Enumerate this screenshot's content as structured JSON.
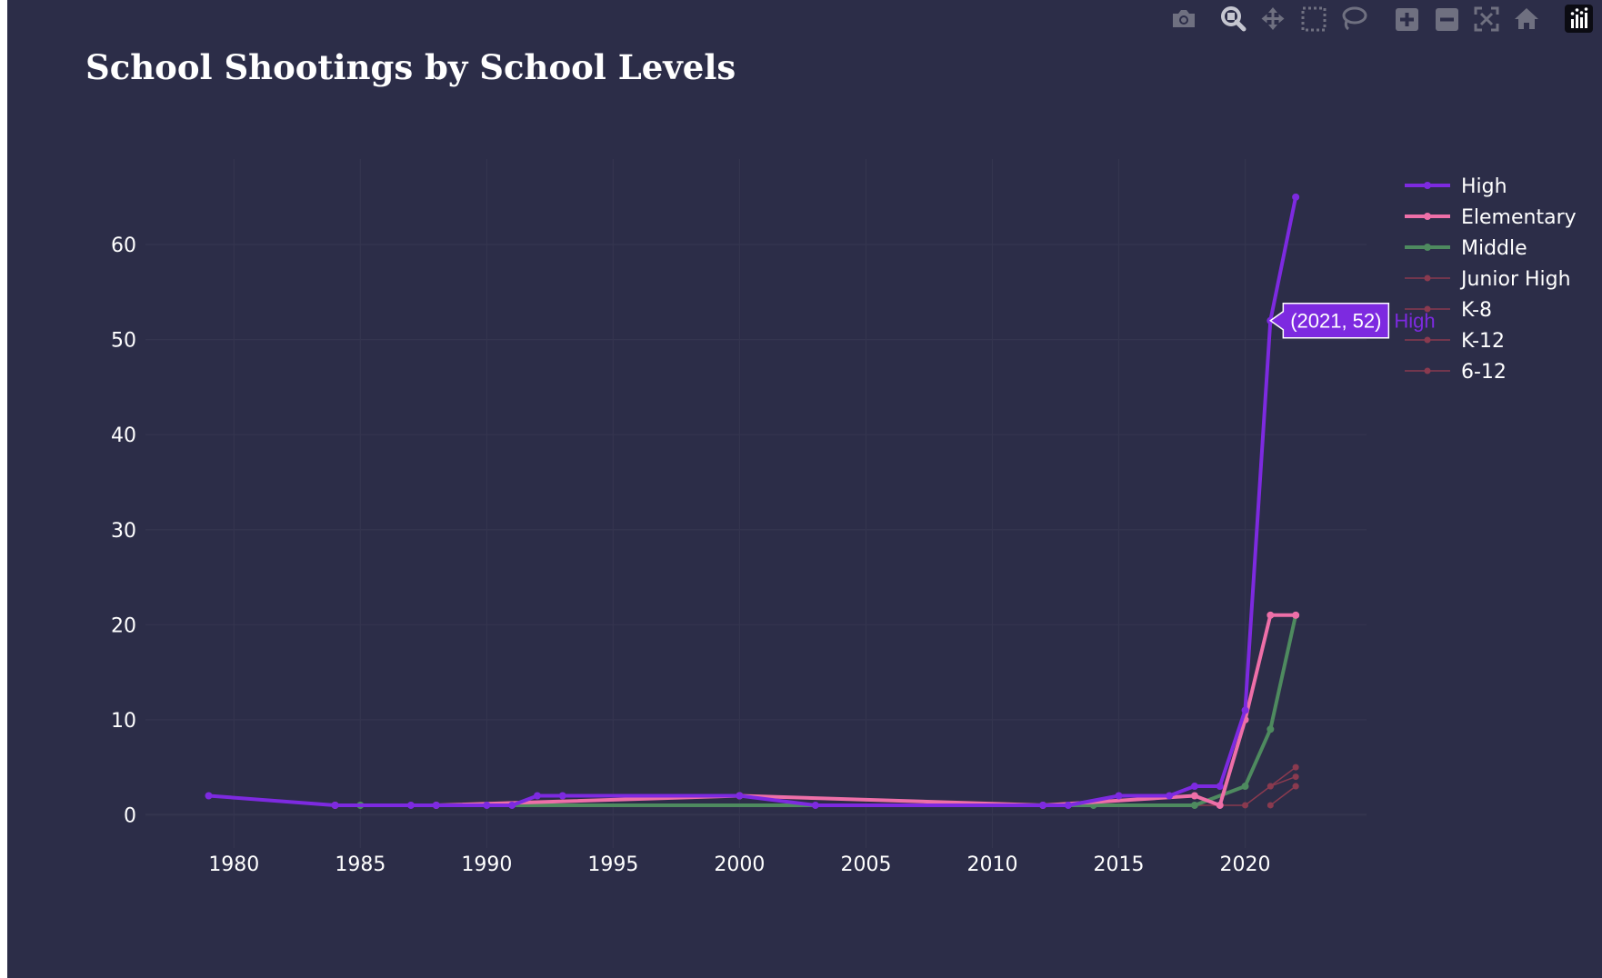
{
  "modebar": {
    "buttons": [
      {
        "name": "download-plot-button",
        "icon": "camera-icon"
      },
      {
        "name": "zoom-button",
        "icon": "zoom-magnifier-icon"
      },
      {
        "name": "pan-button",
        "icon": "pan-arrows-icon"
      },
      {
        "name": "box-select-button",
        "icon": "box-select-icon"
      },
      {
        "name": "lasso-select-button",
        "icon": "lasso-icon"
      },
      {
        "name": "zoom-in-button",
        "icon": "plus-square-icon"
      },
      {
        "name": "zoom-out-button",
        "icon": "minus-square-icon"
      },
      {
        "name": "autoscale-button",
        "icon": "autoscale-icon"
      },
      {
        "name": "reset-axes-button",
        "icon": "home-icon"
      },
      {
        "name": "plotly-logo-button",
        "icon": "plotly-logo-icon"
      }
    ]
  },
  "colors": {
    "background": "#2c2d48",
    "grid": "#34354f",
    "text": "#ffffff",
    "toolbar_icon": "#6f7080",
    "zoom_active": "#b8b9c4"
  },
  "chart_data": {
    "type": "line",
    "title": "School Shootings by School Levels",
    "xlabel": "",
    "ylabel": "",
    "xlim": [
      1976.5,
      2024.8
    ],
    "ylim": [
      -3.5,
      69
    ],
    "x_ticks": [
      1980,
      1985,
      1990,
      1995,
      2000,
      2005,
      2010,
      2015,
      2020
    ],
    "y_ticks": [
      0,
      10,
      20,
      30,
      40,
      50,
      60
    ],
    "grid": true,
    "legend_position": "top-right",
    "series": [
      {
        "name": "High",
        "color": "#7d2ae0",
        "width": 4,
        "marker": 6,
        "points": [
          [
            1979,
            2
          ],
          [
            1984,
            1
          ],
          [
            1987,
            1
          ],
          [
            1988,
            1
          ],
          [
            1990,
            1
          ],
          [
            1991,
            1
          ],
          [
            1992,
            2
          ],
          [
            1993,
            2
          ],
          [
            2000,
            2
          ],
          [
            2003,
            1
          ],
          [
            2012,
            1
          ],
          [
            2013,
            1
          ],
          [
            2015,
            2
          ],
          [
            2017,
            2
          ],
          [
            2018,
            3
          ],
          [
            2019,
            3
          ],
          [
            2020,
            11
          ],
          [
            2021,
            52
          ],
          [
            2022,
            65
          ]
        ]
      },
      {
        "name": "Elementary",
        "color": "#ee6fa8",
        "width": 4,
        "marker": 6,
        "points": [
          [
            1984,
            1
          ],
          [
            1988,
            1
          ],
          [
            2000,
            2
          ],
          [
            2012,
            1
          ],
          [
            2018,
            2
          ],
          [
            2019,
            1
          ],
          [
            2020,
            10
          ],
          [
            2021,
            21
          ],
          [
            2022,
            21
          ]
        ]
      },
      {
        "name": "Middle",
        "color": "#4e8a5f",
        "width": 4,
        "marker": 6,
        "points": [
          [
            1985,
            1
          ],
          [
            2014,
            1
          ],
          [
            2018,
            1
          ],
          [
            2020,
            3
          ],
          [
            2021,
            9
          ],
          [
            2022,
            21
          ]
        ]
      },
      {
        "name": "Junior High",
        "color": "#8a3a4f",
        "width": 1.5,
        "marker": 5,
        "points": [
          [
            1990,
            1
          ],
          [
            2012,
            1
          ],
          [
            2019,
            1
          ],
          [
            2020,
            1
          ],
          [
            2021,
            3
          ],
          [
            2022,
            5
          ]
        ]
      },
      {
        "name": "K-8",
        "color": "#8a3a4f",
        "width": 1.5,
        "marker": 5,
        "points": [
          [
            2021,
            3
          ],
          [
            2022,
            4
          ]
        ]
      },
      {
        "name": "K-12",
        "color": "#8a3a4f",
        "width": 1.5,
        "marker": 5,
        "points": [
          [
            2021,
            1
          ],
          [
            2022,
            3
          ]
        ]
      },
      {
        "name": "6-12",
        "color": "#8a3a4f",
        "width": 1.5,
        "marker": 5,
        "points": [
          [
            2022,
            3
          ]
        ]
      }
    ],
    "hover_tooltip": {
      "series": "High",
      "x": 2021,
      "y": 52,
      "text": "(2021, 52)",
      "label": "High"
    }
  }
}
